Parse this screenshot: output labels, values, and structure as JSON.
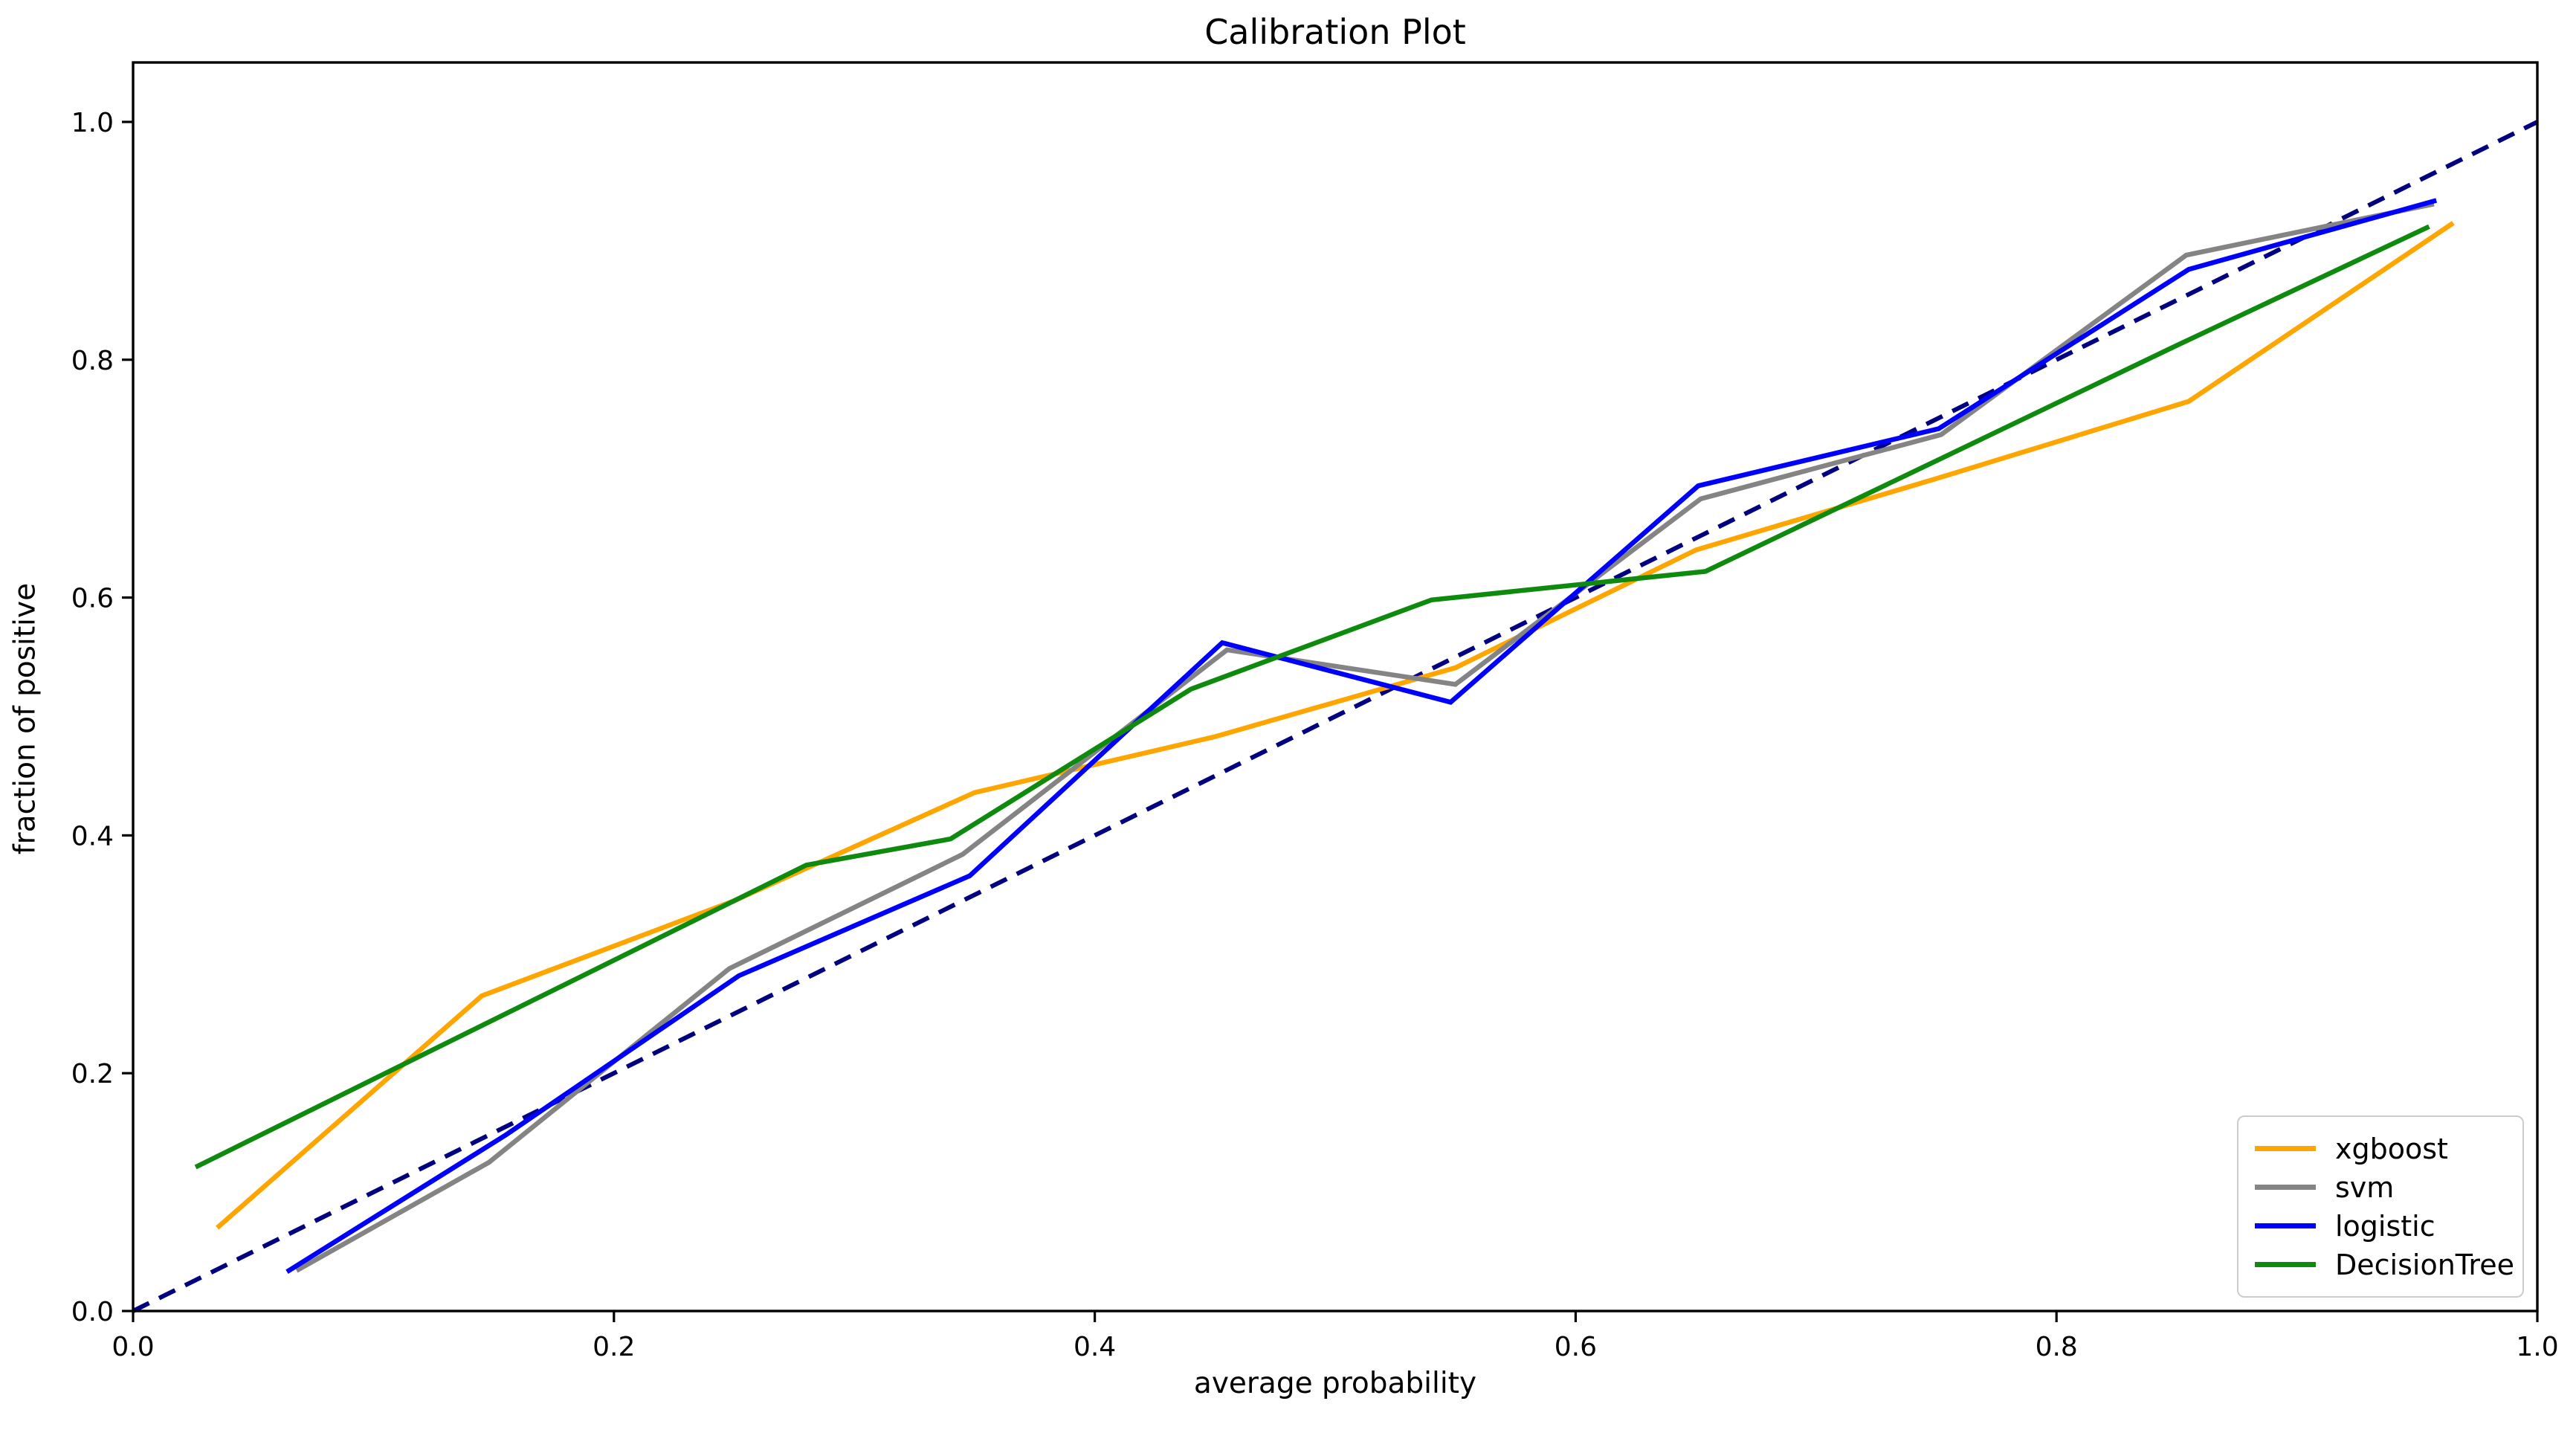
{
  "figure": {
    "title": "Calibration Plot",
    "xlabel": "average probability",
    "ylabel": "fraction of positive"
  },
  "chart_data": {
    "type": "line",
    "title": "Calibration Plot",
    "xlabel": "average probability",
    "ylabel": "fraction of positive",
    "xlim": [
      0.0,
      1.0
    ],
    "ylim": [
      0.0,
      1.05
    ],
    "grid": false,
    "background": "#ffffff",
    "axis_color": "#000000",
    "xticks": {
      "values": [
        0.0,
        0.2,
        0.4,
        0.6,
        0.8,
        1.0
      ],
      "labels": [
        "0.0",
        "0.2",
        "0.4",
        "0.6",
        "0.8",
        "1.0"
      ]
    },
    "yticks": {
      "values": [
        0.0,
        0.2,
        0.4,
        0.6,
        0.8,
        1.0
      ],
      "labels": [
        "0.0",
        "0.2",
        "0.4",
        "0.6",
        "0.8",
        "1.0"
      ]
    },
    "legend": {
      "position": "lower right"
    },
    "reference_line": {
      "name": "perfect-calibration-diagonal",
      "style": "dashed",
      "color": "#000080",
      "x": [
        0.0,
        1.0
      ],
      "y": [
        0.0,
        1.0
      ]
    },
    "series": [
      {
        "name": "xgboost",
        "color": "#FFA500",
        "x": [
          0.035,
          0.145,
          0.25,
          0.35,
          0.45,
          0.55,
          0.65,
          0.75,
          0.855,
          0.965
        ],
        "y": [
          0.07,
          0.265,
          0.345,
          0.436,
          0.483,
          0.541,
          0.64,
          0.7,
          0.765,
          0.915
        ]
      },
      {
        "name": "svm",
        "color": "#848484",
        "x": [
          0.068,
          0.148,
          0.248,
          0.345,
          0.455,
          0.55,
          0.652,
          0.752,
          0.854,
          0.957
        ],
        "y": [
          0.034,
          0.125,
          0.288,
          0.384,
          0.556,
          0.527,
          0.683,
          0.737,
          0.888,
          0.931
        ]
      },
      {
        "name": "logistic",
        "color": "#0000FF",
        "x": [
          0.064,
          0.155,
          0.252,
          0.348,
          0.453,
          0.548,
          0.651,
          0.751,
          0.855,
          0.958
        ],
        "y": [
          0.033,
          0.148,
          0.282,
          0.366,
          0.562,
          0.512,
          0.694,
          0.742,
          0.876,
          0.934
        ]
      },
      {
        "name": "DecisionTree",
        "color": "#0E8A0E",
        "x": [
          0.026,
          0.14,
          0.28,
          0.34,
          0.44,
          0.54,
          0.654,
          0.75,
          0.85,
          0.955
        ],
        "y": [
          0.121,
          0.235,
          0.375,
          0.397,
          0.523,
          0.598,
          0.622,
          0.715,
          0.812,
          0.912
        ]
      }
    ]
  }
}
